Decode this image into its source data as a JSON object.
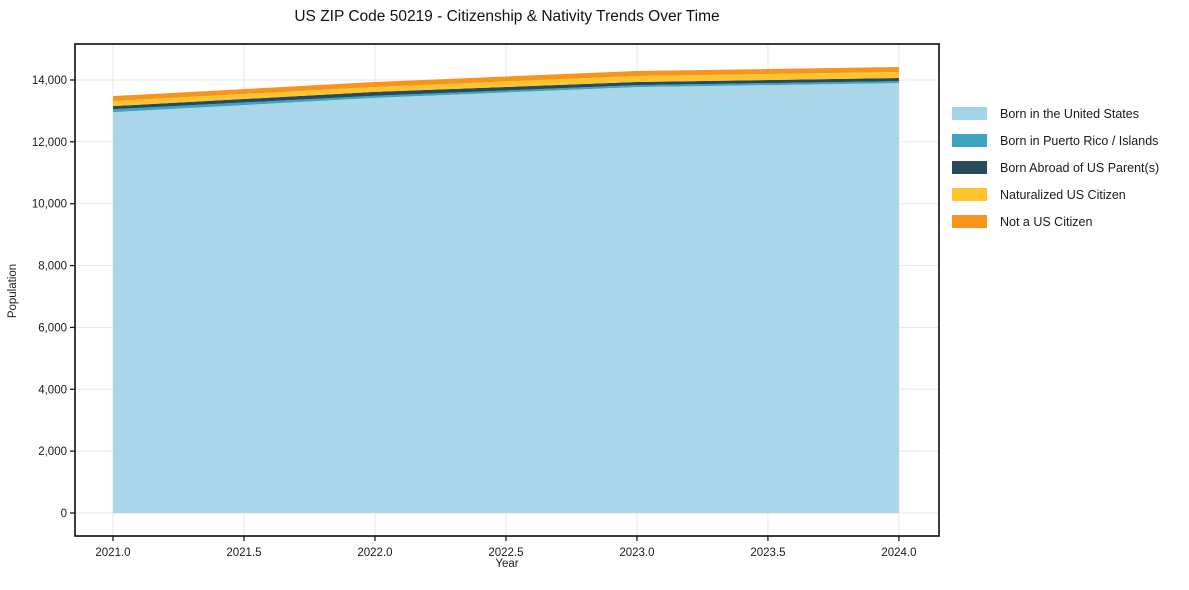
{
  "chart_data": {
    "type": "area",
    "stacked": true,
    "title": "US ZIP Code 50219 - Citizenship & Nativity Trends Over Time",
    "xlabel": "Year",
    "ylabel": "Population",
    "x": [
      2021,
      2022,
      2023,
      2024
    ],
    "series": [
      {
        "name": "Born in the United States",
        "color": "#a4d4e8",
        "values": [
          12960,
          13420,
          13770,
          13900
        ]
      },
      {
        "name": "Born in Puerto Rico / Islands",
        "color": "#3ca6c2",
        "values": [
          95,
          70,
          65,
          65
        ]
      },
      {
        "name": "Born Abroad of US Parent(s)",
        "color": "#29495c",
        "values": [
          100,
          125,
          100,
          100
        ]
      },
      {
        "name": "Naturalized US Citizen",
        "color": "#fdc42d",
        "values": [
          165,
          160,
          195,
          195
        ]
      },
      {
        "name": "Not a US Citizen",
        "color": "#f6941e",
        "values": [
          160,
          160,
          160,
          160
        ]
      }
    ],
    "axes": {
      "xlim": [
        2020.855,
        2024.153
      ],
      "ylim": [
        -744,
        15164
      ],
      "xticks": {
        "values": [
          2021.0,
          2021.5,
          2022.0,
          2022.5,
          2023.0,
          2023.5,
          2024.0
        ],
        "labels": [
          "2021.0",
          "2021.5",
          "2022.0",
          "2022.5",
          "2023.0",
          "2023.5",
          "2024.0"
        ]
      },
      "yticks": {
        "values": [
          0,
          2000,
          4000,
          6000,
          8000,
          10000,
          12000,
          14000
        ],
        "labels": [
          "0",
          "2,000",
          "4,000",
          "6,000",
          "8,000",
          "10,000",
          "12,000",
          "14,000"
        ]
      },
      "grid": true,
      "grid_color": "#e7e7e7",
      "spine_color": "#1a1a1a",
      "legend_position": "right-outside"
    }
  }
}
